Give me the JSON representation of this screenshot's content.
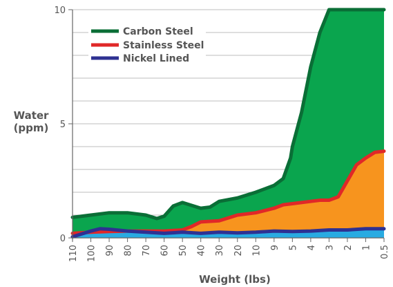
{
  "chart_data": {
    "type": "area",
    "xlabel": "Weight (lbs)",
    "ylabel_line1": "Water",
    "ylabel_line2": "(ppm)",
    "ylim": [
      0,
      10
    ],
    "yticks": [
      0,
      5,
      10
    ],
    "x_tick_labels": [
      "110",
      "100",
      "90",
      "80",
      "70",
      "60",
      "50",
      "40",
      "30",
      "20",
      "10",
      "9",
      "5",
      "4",
      "3",
      "2",
      "1",
      "0.5"
    ],
    "legend_position": "top-left",
    "grid": true,
    "series": [
      {
        "name": "Carbon Steel",
        "line_color": "#0a6e36",
        "fill_color": "#0aa54e",
        "points": [
          [
            0,
            0.9
          ],
          [
            1,
            1.0
          ],
          [
            2,
            1.1
          ],
          [
            3,
            1.1
          ],
          [
            4,
            1.0
          ],
          [
            4.6,
            0.85
          ],
          [
            5,
            0.95
          ],
          [
            5.5,
            1.4
          ],
          [
            6,
            1.55
          ],
          [
            7,
            1.3
          ],
          [
            7.5,
            1.35
          ],
          [
            8,
            1.6
          ],
          [
            9,
            1.75
          ],
          [
            10,
            2.0
          ],
          [
            11,
            2.3
          ],
          [
            11.5,
            2.6
          ],
          [
            11.9,
            3.5
          ],
          [
            12,
            4.0
          ],
          [
            12.5,
            5.5
          ],
          [
            13,
            7.5
          ],
          [
            13.5,
            9.0
          ],
          [
            14,
            10.0
          ],
          [
            17,
            10.0
          ]
        ]
      },
      {
        "name": "Stainless Steel",
        "line_color": "#e02828",
        "fill_color": "#f7941e",
        "points": [
          [
            0,
            0.2
          ],
          [
            1,
            0.25
          ],
          [
            2,
            0.28
          ],
          [
            3,
            0.3
          ],
          [
            4,
            0.3
          ],
          [
            5,
            0.3
          ],
          [
            6,
            0.35
          ],
          [
            6.5,
            0.5
          ],
          [
            7,
            0.7
          ],
          [
            8,
            0.75
          ],
          [
            9,
            1.0
          ],
          [
            10,
            1.1
          ],
          [
            11,
            1.3
          ],
          [
            11.5,
            1.45
          ],
          [
            12,
            1.5
          ],
          [
            13,
            1.6
          ],
          [
            13.5,
            1.65
          ],
          [
            14,
            1.65
          ],
          [
            14.5,
            1.8
          ],
          [
            15,
            2.5
          ],
          [
            15.5,
            3.2
          ],
          [
            16,
            3.5
          ],
          [
            16.5,
            3.75
          ],
          [
            17,
            3.8
          ]
        ]
      },
      {
        "name": "Nickel Lined",
        "line_color": "#2e3192",
        "fill_color": "#29abe2",
        "points": [
          [
            0,
            0.05
          ],
          [
            1,
            0.3
          ],
          [
            1.5,
            0.4
          ],
          [
            2,
            0.38
          ],
          [
            3,
            0.3
          ],
          [
            4,
            0.25
          ],
          [
            5,
            0.2
          ],
          [
            6,
            0.25
          ],
          [
            7,
            0.2
          ],
          [
            8,
            0.25
          ],
          [
            9,
            0.22
          ],
          [
            10,
            0.25
          ],
          [
            11,
            0.3
          ],
          [
            12,
            0.28
          ],
          [
            13,
            0.3
          ],
          [
            14,
            0.35
          ],
          [
            15,
            0.35
          ],
          [
            16,
            0.4
          ],
          [
            17,
            0.4
          ]
        ]
      }
    ]
  }
}
